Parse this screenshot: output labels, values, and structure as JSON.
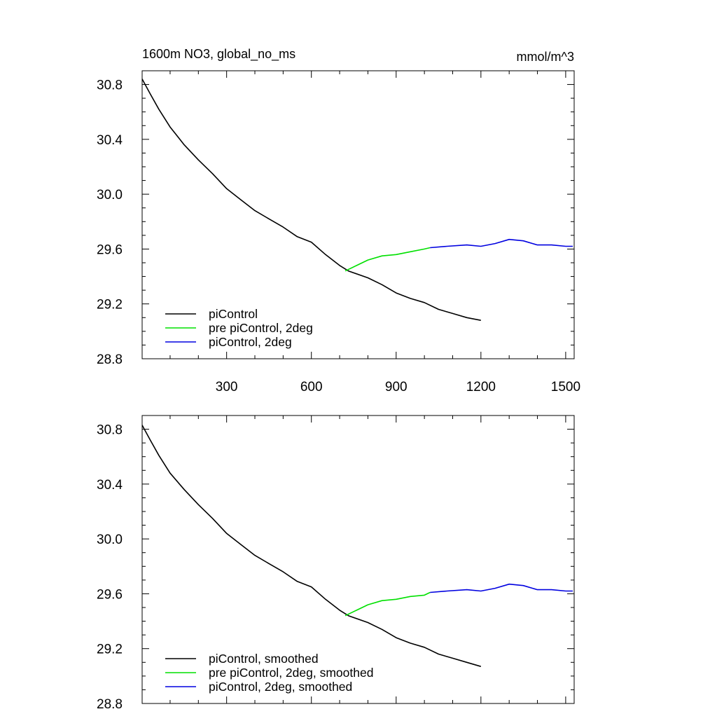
{
  "chart_data": [
    {
      "type": "line",
      "title": "1600m NO3, global_no_ms",
      "units": "mmol/m^3",
      "xlabel": "",
      "ylabel": "",
      "xlim": [
        1,
        1530
      ],
      "ylim": [
        28.8,
        30.9
      ],
      "xticks": [
        300,
        600,
        900,
        1200,
        1500
      ],
      "xtick_labels": [
        "300",
        "600",
        "900",
        "1200",
        "1500"
      ],
      "yticks": [
        28.8,
        29.2,
        29.6,
        30.0,
        30.4,
        30.8
      ],
      "ytick_labels": [
        "28.8",
        "29.2",
        "29.6",
        "30.0",
        "30.4",
        "30.8"
      ],
      "grid": false,
      "legend_position": "bottom-left",
      "series": [
        {
          "name": "piControl",
          "color": "#000000",
          "x": [
            1,
            30,
            60,
            100,
            150,
            200,
            250,
            300,
            350,
            400,
            450,
            500,
            550,
            600,
            650,
            700,
            731,
            800,
            850,
            900,
            950,
            1000,
            1050,
            1100,
            1150,
            1200
          ],
          "y": [
            30.84,
            30.73,
            30.62,
            30.49,
            30.36,
            30.25,
            30.15,
            30.04,
            29.96,
            29.88,
            29.82,
            29.76,
            29.69,
            29.65,
            29.56,
            29.48,
            29.44,
            29.39,
            29.34,
            29.28,
            29.24,
            29.21,
            29.16,
            29.13,
            29.1,
            29.08
          ]
        },
        {
          "name": "pre piControl, 2deg",
          "color": "#00e000",
          "x": [
            720,
            760,
            800,
            850,
            900,
            950,
            1000,
            1020
          ],
          "y": [
            29.44,
            29.48,
            29.52,
            29.55,
            29.56,
            29.58,
            29.6,
            29.61
          ]
        },
        {
          "name": "piControl, 2deg",
          "color": "#0000e0",
          "x": [
            1020,
            1080,
            1150,
            1200,
            1250,
            1300,
            1350,
            1400,
            1450,
            1500,
            1525
          ],
          "y": [
            29.61,
            29.62,
            29.63,
            29.62,
            29.64,
            29.67,
            29.66,
            29.63,
            29.63,
            29.62,
            29.62
          ]
        }
      ]
    },
    {
      "type": "line",
      "title": "",
      "xlim": [
        1,
        1530
      ],
      "ylim": [
        28.8,
        30.9
      ],
      "yticks": [
        28.8,
        29.2,
        29.6,
        30.0,
        30.4,
        30.8
      ],
      "ytick_labels": [
        "28.8",
        "29.2",
        "29.6",
        "30.0",
        "30.4",
        "30.8"
      ],
      "grid": false,
      "legend_position": "bottom-left",
      "series": [
        {
          "name": "piControl, smoothed",
          "color": "#000000",
          "x": [
            1,
            30,
            60,
            100,
            150,
            200,
            250,
            300,
            350,
            400,
            450,
            500,
            550,
            600,
            650,
            700,
            731,
            800,
            850,
            900,
            950,
            1000,
            1050,
            1100,
            1150,
            1200
          ],
          "y": [
            30.83,
            30.72,
            30.61,
            30.48,
            30.36,
            30.25,
            30.15,
            30.04,
            29.96,
            29.88,
            29.82,
            29.76,
            29.69,
            29.65,
            29.56,
            29.48,
            29.44,
            29.39,
            29.34,
            29.28,
            29.24,
            29.21,
            29.16,
            29.13,
            29.1,
            29.07
          ]
        },
        {
          "name": "pre piControl, 2deg, smoothed",
          "color": "#00e000",
          "x": [
            720,
            760,
            800,
            850,
            900,
            950,
            1000,
            1020
          ],
          "y": [
            29.44,
            29.48,
            29.52,
            29.55,
            29.56,
            29.58,
            29.59,
            29.61
          ]
        },
        {
          "name": "piControl, 2deg, smoothed",
          "color": "#0000e0",
          "x": [
            1020,
            1080,
            1150,
            1200,
            1250,
            1300,
            1350,
            1400,
            1450,
            1500,
            1525
          ],
          "y": [
            29.61,
            29.62,
            29.63,
            29.62,
            29.64,
            29.67,
            29.66,
            29.63,
            29.63,
            29.62,
            29.62
          ]
        }
      ]
    }
  ]
}
